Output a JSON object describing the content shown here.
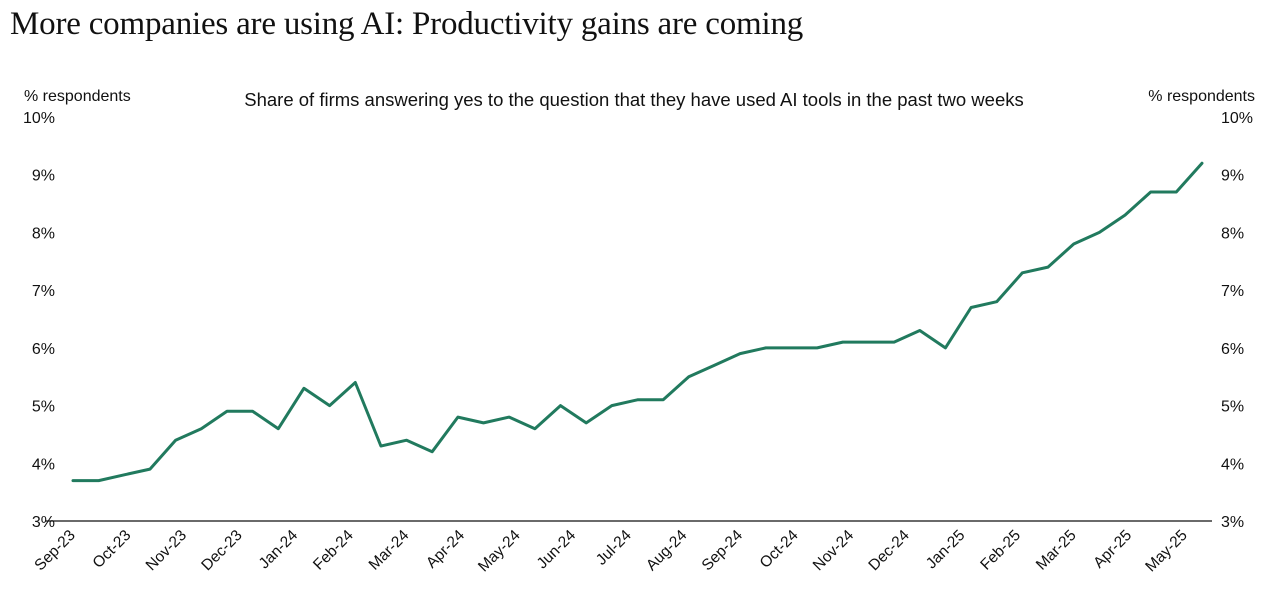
{
  "page_title": "More companies are using AI: Productivity gains are coming",
  "chart_data": {
    "type": "line",
    "title": "More companies are using AI: Productivity gains are coming",
    "subtitle": "Share of firms answering yes to the question that they have used AI tools in the past two weeks",
    "ylabel_left": "% respondents",
    "ylabel_right": "% respondents",
    "ylim": [
      3,
      10
    ],
    "yticks": [
      "3%",
      "4%",
      "5%",
      "6%",
      "7%",
      "8%",
      "9%",
      "10%"
    ],
    "xticks": [
      "Sep-23",
      "Oct-23",
      "Nov-23",
      "Dec-23",
      "Jan-24",
      "Feb-24",
      "Mar-24",
      "Apr-24",
      "May-24",
      "Jun-24",
      "Jul-24",
      "Aug-24",
      "Sep-24",
      "Oct-24",
      "Nov-24",
      "Dec-24",
      "Jan-25",
      "Feb-25",
      "Mar-25",
      "Apr-25",
      "May-25"
    ],
    "grid": false,
    "line_color": "#217a5e",
    "series": [
      {
        "values": [
          3.7,
          3.7,
          3.8,
          3.9,
          4.4,
          4.6,
          4.9,
          4.9,
          4.6,
          5.3,
          5.0,
          5.4,
          4.3,
          4.4,
          4.2,
          4.8,
          4.7,
          4.8,
          4.6,
          5.0,
          4.7,
          5.0,
          5.1,
          5.1,
          5.5,
          5.7,
          5.9,
          6.0,
          6.0,
          6.0,
          6.1,
          6.1,
          6.1,
          6.3,
          6.0,
          6.7,
          6.8,
          7.3,
          7.4,
          7.8,
          8.0,
          8.3,
          8.7,
          8.7,
          9.2
        ]
      }
    ]
  }
}
